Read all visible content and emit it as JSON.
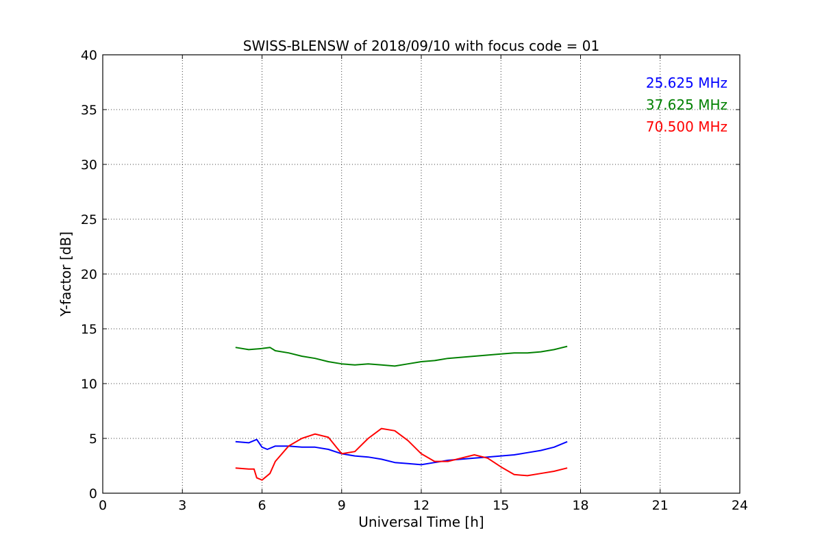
{
  "chart_data": {
    "type": "line",
    "title": "SWISS-BLENSW of 2018/09/10 with focus code = 01",
    "xlabel": "Universal Time [h]",
    "ylabel": "Y-factor [dB]",
    "xlim": [
      0,
      24
    ],
    "ylim": [
      0,
      40
    ],
    "xticks": [
      0,
      3,
      6,
      9,
      12,
      15,
      18,
      21,
      24
    ],
    "yticks": [
      0,
      5,
      10,
      15,
      20,
      25,
      30,
      35,
      40
    ],
    "grid": true,
    "legend_position": "top-right",
    "series": [
      {
        "name": "25.625 MHz",
        "color": "#0000ff",
        "x": [
          5.0,
          5.5,
          5.8,
          6.0,
          6.2,
          6.5,
          7.0,
          7.5,
          8.0,
          8.5,
          9.0,
          9.5,
          10.0,
          10.5,
          11.0,
          11.5,
          12.0,
          12.5,
          13.0,
          13.5,
          14.0,
          14.5,
          15.0,
          15.5,
          16.0,
          16.5,
          17.0,
          17.5
        ],
        "y": [
          4.7,
          4.6,
          4.9,
          4.2,
          4.0,
          4.3,
          4.3,
          4.2,
          4.2,
          4.0,
          3.6,
          3.4,
          3.3,
          3.1,
          2.8,
          2.7,
          2.6,
          2.8,
          3.0,
          3.1,
          3.2,
          3.3,
          3.4,
          3.5,
          3.7,
          3.9,
          4.2,
          4.7
        ]
      },
      {
        "name": "37.625 MHz",
        "color": "#008000",
        "x": [
          5.0,
          5.5,
          6.0,
          6.3,
          6.5,
          7.0,
          7.5,
          8.0,
          8.5,
          9.0,
          9.5,
          10.0,
          10.5,
          11.0,
          11.5,
          12.0,
          12.5,
          13.0,
          13.5,
          14.0,
          14.5,
          15.0,
          15.5,
          16.0,
          16.5,
          17.0,
          17.5
        ],
        "y": [
          13.3,
          13.1,
          13.2,
          13.3,
          13.0,
          12.8,
          12.5,
          12.3,
          12.0,
          11.8,
          11.7,
          11.8,
          11.7,
          11.6,
          11.8,
          12.0,
          12.1,
          12.3,
          12.4,
          12.5,
          12.6,
          12.7,
          12.8,
          12.8,
          12.9,
          13.1,
          13.4
        ]
      },
      {
        "name": "70.500 MHz",
        "color": "#ff0000",
        "x": [
          5.0,
          5.5,
          5.7,
          5.8,
          6.0,
          6.3,
          6.5,
          7.0,
          7.5,
          8.0,
          8.5,
          9.0,
          9.5,
          10.0,
          10.5,
          11.0,
          11.5,
          12.0,
          12.5,
          13.0,
          13.5,
          14.0,
          14.5,
          15.0,
          15.5,
          16.0,
          16.5,
          17.0,
          17.5
        ],
        "y": [
          2.3,
          2.2,
          2.2,
          1.4,
          1.2,
          1.8,
          2.9,
          4.3,
          5.0,
          5.4,
          5.1,
          3.6,
          3.8,
          5.0,
          5.9,
          5.7,
          4.8,
          3.6,
          2.9,
          2.9,
          3.2,
          3.5,
          3.2,
          2.4,
          1.7,
          1.6,
          1.8,
          2.0,
          2.3
        ]
      }
    ]
  }
}
